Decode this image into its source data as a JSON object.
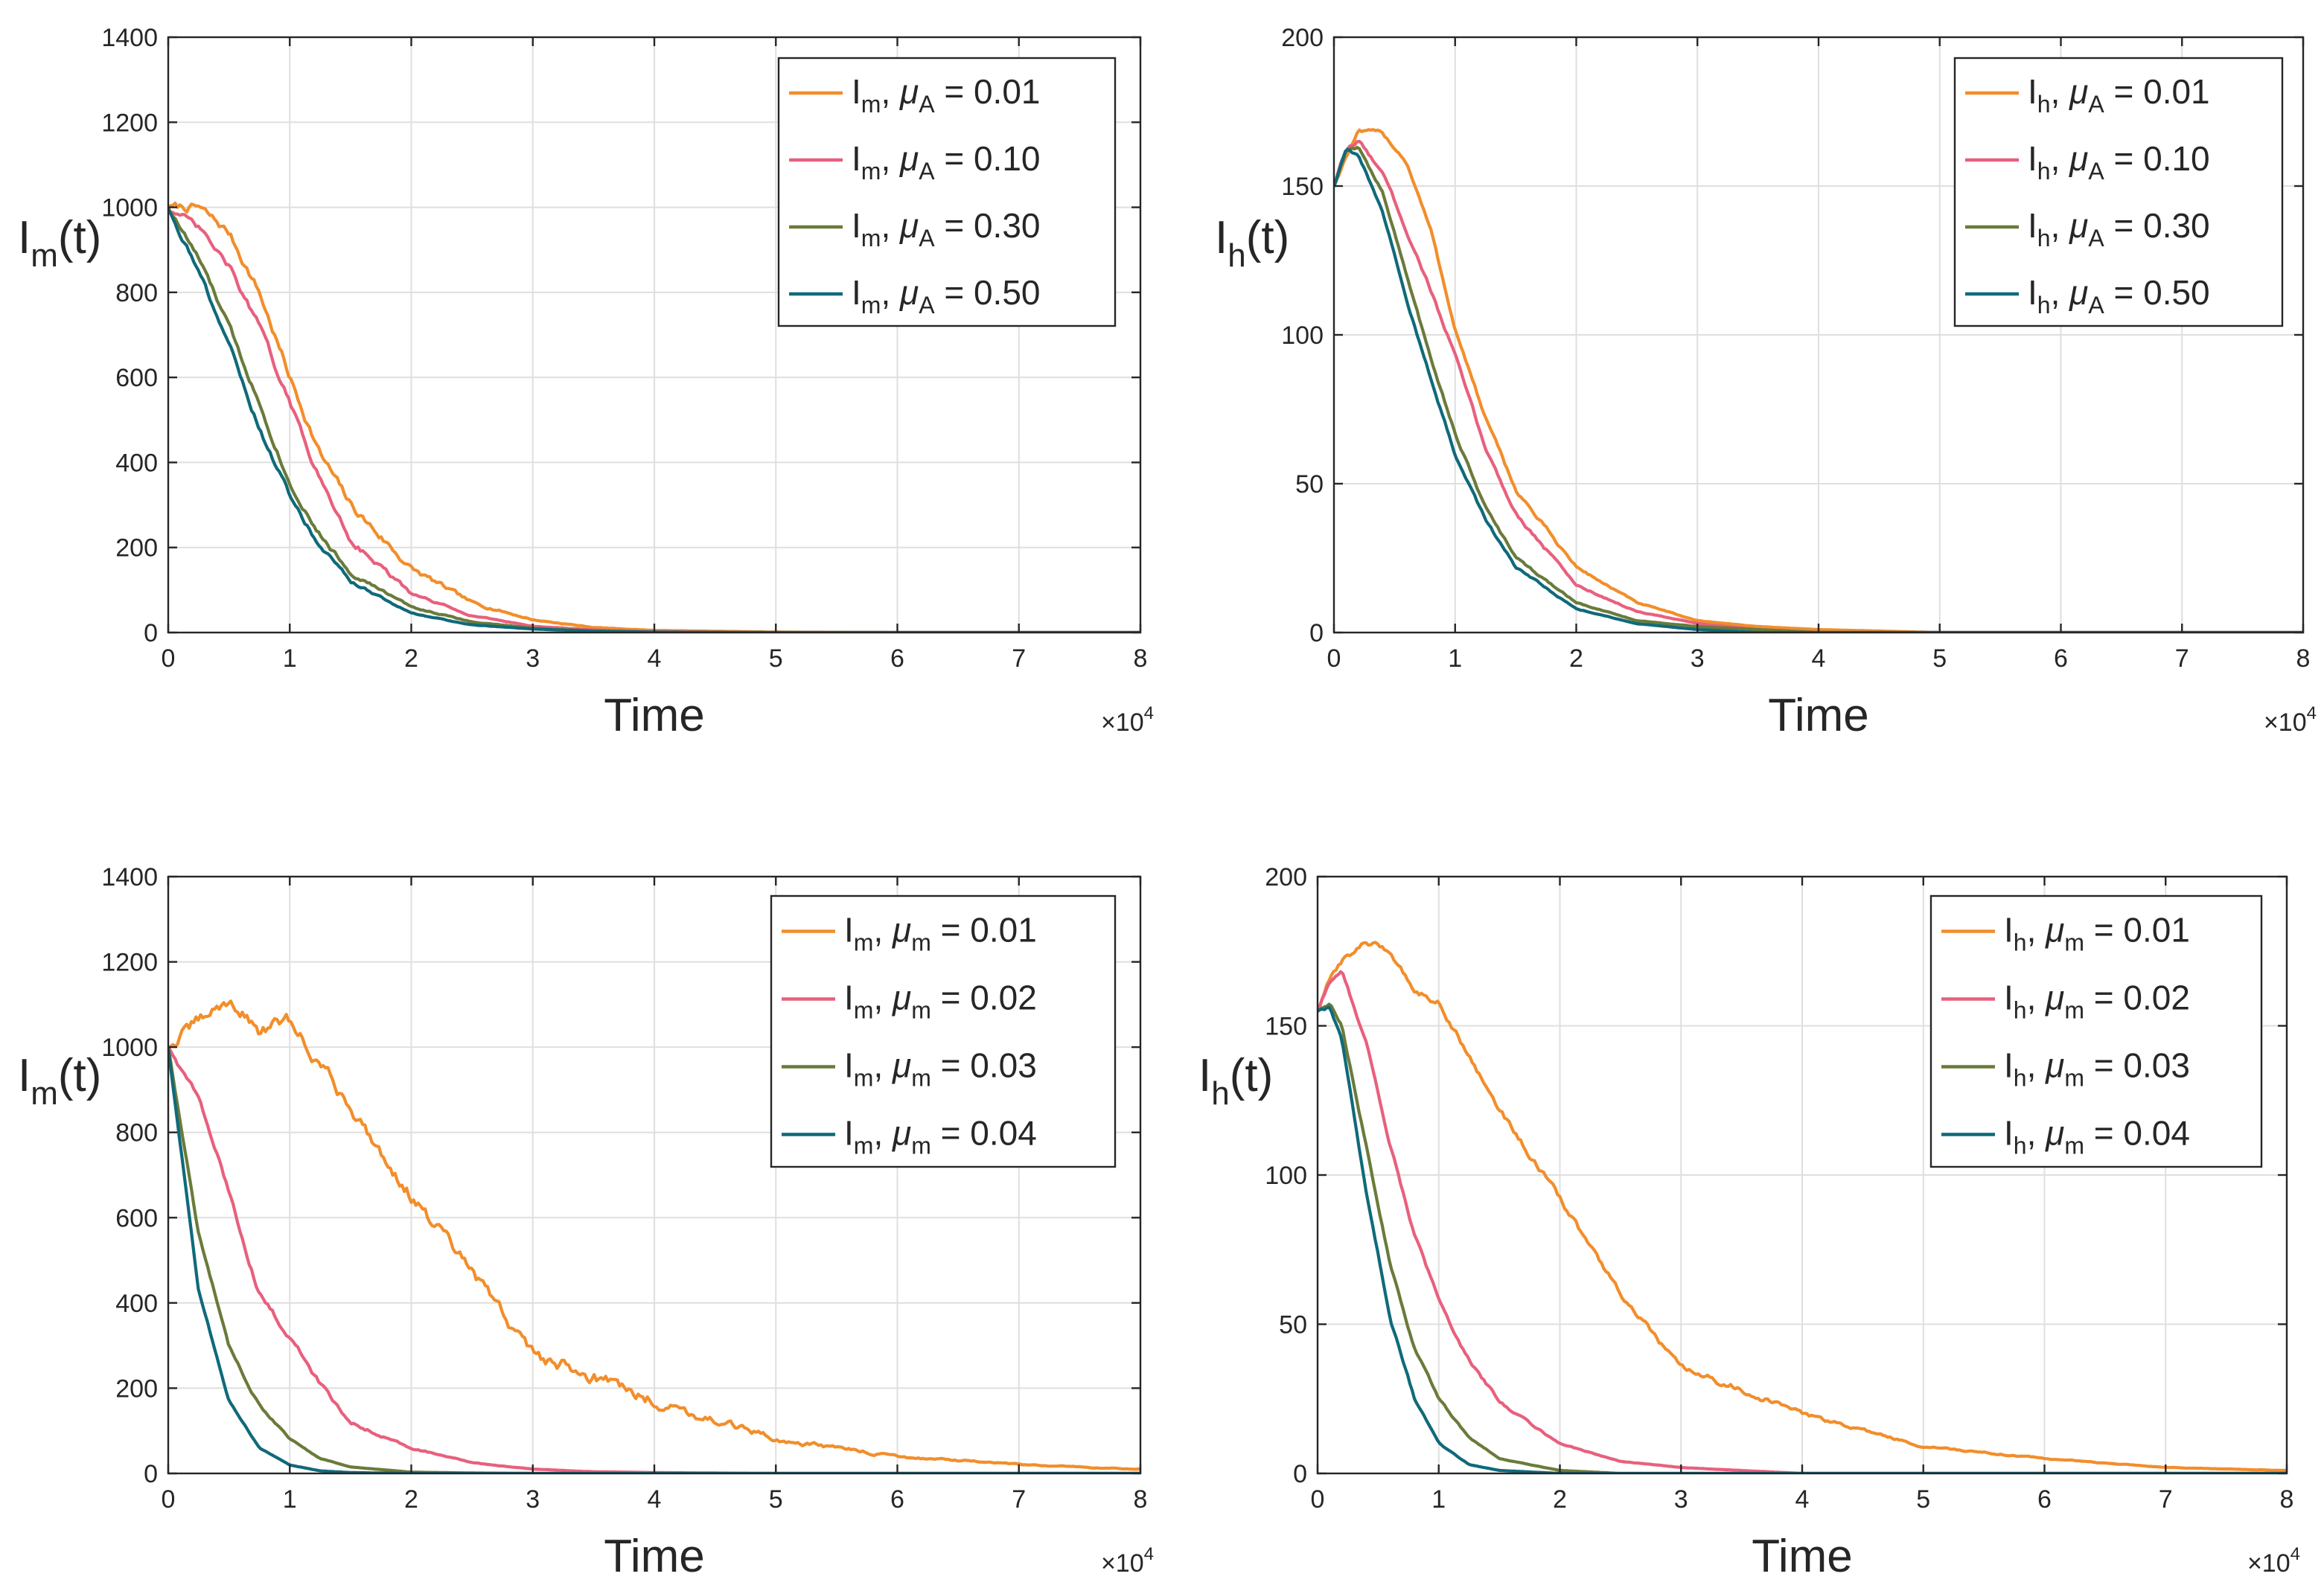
{
  "figure": {
    "kind": "2x2 panel of stochastic simulation plots"
  },
  "chart_data": [
    {
      "type": "line",
      "panel": "top-left",
      "xlabel": "Time",
      "ylabel": {
        "base": "I",
        "sub": "m",
        "suffix": "(t)"
      },
      "x_multiplier": {
        "base": "×10",
        "exp": "4"
      },
      "xlim": [
        0,
        8
      ],
      "ylim": [
        0,
        1400
      ],
      "xticks": [
        "0",
        "1",
        "2",
        "3",
        "4",
        "5",
        "6",
        "7",
        "8"
      ],
      "yticks": [
        "0",
        "200",
        "400",
        "600",
        "800",
        "1000",
        "1200",
        "1400"
      ],
      "grid": true,
      "legend_position": "top-right",
      "x": [
        0,
        0.25,
        0.5,
        0.75,
        1,
        1.25,
        1.5,
        2,
        2.5,
        3,
        3.5,
        4,
        5,
        6,
        7,
        8
      ],
      "series": [
        {
          "label": {
            "var": "I",
            "var_sub": "m",
            "param": "μ",
            "param_sub": "A",
            "value": "= 0.01"
          },
          "color": "#F28E2B",
          "noise": 8,
          "values": [
            1000,
            1000,
            940,
            800,
            600,
            420,
            300,
            150,
            70,
            30,
            12,
            5,
            1,
            0,
            0,
            0
          ]
        },
        {
          "label": {
            "var": "I",
            "var_sub": "m",
            "param": "μ",
            "param_sub": "A",
            "value": "= 0.10"
          },
          "color": "#E8607E",
          "noise": 6,
          "values": [
            1000,
            950,
            860,
            720,
            540,
            360,
            220,
            90,
            40,
            15,
            6,
            2,
            0,
            0,
            0,
            0
          ]
        },
        {
          "label": {
            "var": "I",
            "var_sub": "m",
            "param": "μ",
            "param_sub": "A",
            "value": "= 0.30"
          },
          "color": "#6A7B3A",
          "noise": 5,
          "values": [
            1000,
            880,
            720,
            540,
            350,
            230,
            140,
            60,
            25,
            10,
            4,
            1,
            0,
            0,
            0,
            0
          ]
        },
        {
          "label": {
            "var": "I",
            "var_sub": "m",
            "param": "μ",
            "param_sub": "A",
            "value": "= 0.50"
          },
          "color": "#0F6A7A",
          "noise": 5,
          "values": [
            1000,
            850,
            680,
            480,
            320,
            200,
            120,
            45,
            18,
            8,
            3,
            1,
            0,
            0,
            0,
            0
          ]
        }
      ]
    },
    {
      "type": "line",
      "panel": "top-right",
      "xlabel": "Time",
      "ylabel": {
        "base": "I",
        "sub": "h",
        "suffix": "(t)"
      },
      "x_multiplier": {
        "base": "×10",
        "exp": "4"
      },
      "xlim": [
        0,
        8
      ],
      "ylim": [
        0,
        200
      ],
      "xticks": [
        "0",
        "1",
        "2",
        "3",
        "4",
        "5",
        "6",
        "7",
        "8"
      ],
      "yticks": [
        "0",
        "50",
        "100",
        "150",
        "200"
      ],
      "grid": true,
      "legend_position": "top-right",
      "x": [
        0,
        0.1,
        0.2,
        0.4,
        0.6,
        0.8,
        1,
        1.25,
        1.5,
        2,
        2.5,
        3,
        3.5,
        4,
        5,
        6,
        8
      ],
      "series": [
        {
          "label": {
            "var": "I",
            "var_sub": "h",
            "param": "μ",
            "param_sub": "A",
            "value": "= 0.01"
          },
          "color": "#F28E2B",
          "noise": 0.5,
          "values": [
            150,
            160,
            168,
            168,
            158,
            135,
            102,
            72,
            48,
            22,
            10,
            4,
            2,
            1,
            0,
            0,
            0
          ]
        },
        {
          "label": {
            "var": "I",
            "var_sub": "h",
            "param": "μ",
            "param_sub": "A",
            "value": "= 0.10"
          },
          "color": "#E8607E",
          "noise": 0.5,
          "values": [
            150,
            162,
            165,
            155,
            135,
            115,
            93,
            62,
            40,
            16,
            7,
            3,
            1,
            0,
            0,
            0,
            0
          ]
        },
        {
          "label": {
            "var": "I",
            "var_sub": "h",
            "param": "μ",
            "param_sub": "A",
            "value": "= 0.30"
          },
          "color": "#6A7B3A",
          "noise": 0.4,
          "values": [
            150,
            162,
            163,
            148,
            120,
            92,
            67,
            42,
            25,
            10,
            4,
            2,
            1,
            0,
            0,
            0,
            0
          ]
        },
        {
          "label": {
            "var": "I",
            "var_sub": "h",
            "param": "μ",
            "param_sub": "A",
            "value": "= 0.50"
          },
          "color": "#0F6A7A",
          "noise": 0.4,
          "values": [
            150,
            162,
            160,
            142,
            112,
            85,
            60,
            38,
            22,
            8,
            3,
            1,
            0,
            0,
            0,
            0,
            0
          ]
        }
      ]
    },
    {
      "type": "line",
      "panel": "bottom-left",
      "xlabel": "Time",
      "ylabel": {
        "base": "I",
        "sub": "m",
        "suffix": "(t)"
      },
      "x_multiplier": {
        "base": "×10",
        "exp": "4"
      },
      "xlim": [
        0,
        8
      ],
      "ylim": [
        0,
        1400
      ],
      "xticks": [
        "0",
        "1",
        "2",
        "3",
        "4",
        "5",
        "6",
        "7",
        "8"
      ],
      "yticks": [
        "0",
        "200",
        "400",
        "600",
        "800",
        "1000",
        "1200",
        "1400"
      ],
      "grid": true,
      "legend_position": "top-right",
      "x": [
        0,
        0.25,
        0.5,
        0.75,
        1,
        1.25,
        1.5,
        2,
        2.5,
        3,
        3.5,
        4,
        5,
        6,
        7,
        8
      ],
      "series": [
        {
          "label": {
            "var": "I",
            "var_sub": "m",
            "param": "μ",
            "param_sub": "m",
            "value": "= 0.01"
          },
          "color": "#F28E2B",
          "noise": 12,
          "values": [
            1000,
            1060,
            1110,
            1040,
            1060,
            960,
            860,
            650,
            470,
            280,
            230,
            170,
            80,
            40,
            20,
            10
          ]
        },
        {
          "label": {
            "var": "I",
            "var_sub": "m",
            "param": "μ",
            "param_sub": "m",
            "value": "= 0.02"
          },
          "color": "#E8607E",
          "noise": 5,
          "values": [
            1000,
            880,
            660,
            420,
            320,
            210,
            120,
            60,
            25,
            10,
            4,
            2,
            0,
            0,
            0,
            0
          ]
        },
        {
          "label": {
            "var": "I",
            "var_sub": "m",
            "param": "μ",
            "param_sub": "m",
            "value": "= 0.03"
          },
          "color": "#6A7B3A",
          "noise": 3,
          "values": [
            1000,
            560,
            300,
            160,
            80,
            35,
            15,
            3,
            1,
            0,
            0,
            0,
            0,
            0,
            0,
            0
          ]
        },
        {
          "label": {
            "var": "I",
            "var_sub": "m",
            "param": "μ",
            "param_sub": "m",
            "value": "= 0.04"
          },
          "color": "#0F6A7A",
          "noise": 2,
          "values": [
            1000,
            430,
            170,
            60,
            20,
            6,
            2,
            0,
            0,
            0,
            0,
            0,
            0,
            0,
            0,
            0
          ]
        }
      ]
    },
    {
      "type": "line",
      "panel": "bottom-right",
      "xlabel": "Time",
      "ylabel": {
        "base": "I",
        "sub": "h",
        "suffix": "(t)"
      },
      "x_multiplier": {
        "base": "×10",
        "exp": "4"
      },
      "xlim": [
        0,
        8
      ],
      "ylim": [
        0,
        200
      ],
      "xticks": [
        "0",
        "1",
        "2",
        "3",
        "4",
        "5",
        "6",
        "7",
        "8"
      ],
      "yticks": [
        "0",
        "50",
        "100",
        "150",
        "200"
      ],
      "grid": true,
      "legend_position": "top-right",
      "x": [
        0,
        0.1,
        0.2,
        0.4,
        0.6,
        0.8,
        1,
        1.25,
        1.5,
        2,
        2.5,
        3,
        3.5,
        4,
        5,
        6,
        7,
        8
      ],
      "series": [
        {
          "label": {
            "var": "I",
            "var_sub": "h",
            "param": "μ",
            "param_sub": "m",
            "value": "= 0.01"
          },
          "color": "#F28E2B",
          "noise": 0.8,
          "values": [
            155,
            165,
            172,
            178,
            175,
            162,
            158,
            140,
            122,
            92,
            60,
            35,
            28,
            20,
            9,
            5,
            2,
            1
          ]
        },
        {
          "label": {
            "var": "I",
            "var_sub": "h",
            "param": "μ",
            "param_sub": "m",
            "value": "= 0.02"
          },
          "color": "#E8607E",
          "noise": 0.5,
          "values": [
            155,
            165,
            168,
            145,
            110,
            80,
            58,
            38,
            24,
            10,
            4,
            2,
            1,
            0,
            0,
            0,
            0,
            0
          ]
        },
        {
          "label": {
            "var": "I",
            "var_sub": "h",
            "param": "μ",
            "param_sub": "m",
            "value": "= 0.03"
          },
          "color": "#6A7B3A",
          "noise": 0.4,
          "values": [
            155,
            157,
            150,
            110,
            70,
            42,
            25,
            12,
            5,
            1,
            0,
            0,
            0,
            0,
            0,
            0,
            0,
            0
          ]
        },
        {
          "label": {
            "var": "I",
            "var_sub": "h",
            "param": "μ",
            "param_sub": "m",
            "value": "= 0.04"
          },
          "color": "#0F6A7A",
          "noise": 0.4,
          "values": [
            155,
            156,
            145,
            95,
            52,
            25,
            10,
            3,
            1,
            0,
            0,
            0,
            0,
            0,
            0,
            0,
            0,
            0
          ]
        }
      ]
    }
  ]
}
